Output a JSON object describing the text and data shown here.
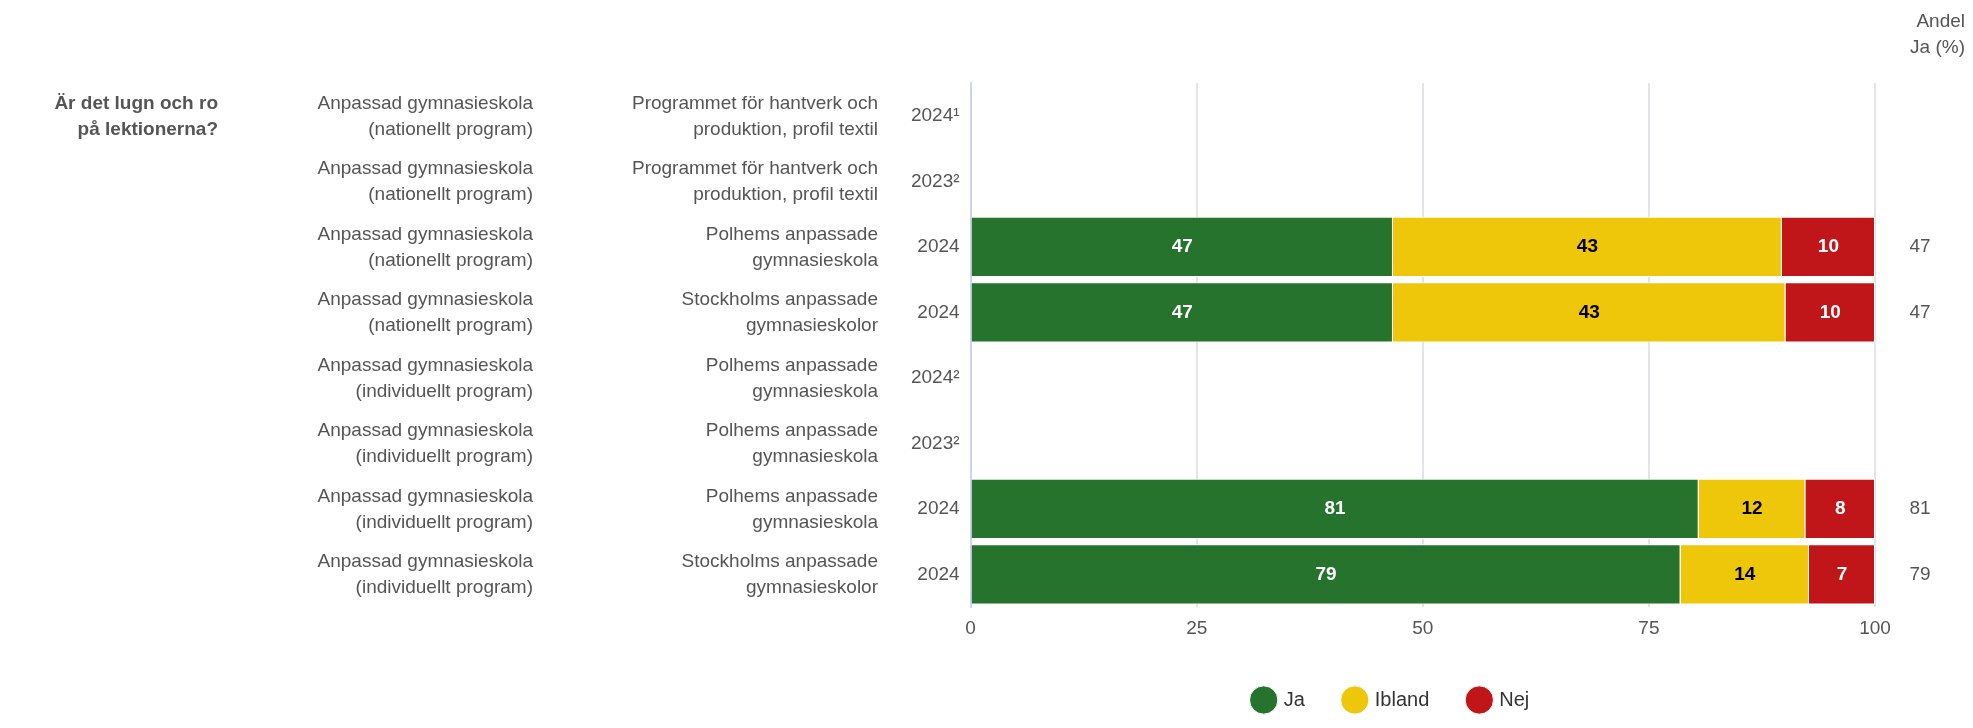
{
  "chart_data": {
    "type": "bar",
    "orientation": "horizontal",
    "stacked": true,
    "categories": [
      "2024¹",
      "2023²",
      "2024",
      "2024",
      "2024²",
      "2023²",
      "2024",
      "2024"
    ],
    "series": [
      {
        "name": "Ja",
        "color": "#25732c",
        "values": [
          null,
          null,
          46.7,
          46.7,
          null,
          null,
          80.5,
          78.5
        ],
        "value_labels": [
          null,
          null,
          "47",
          "47",
          null,
          null,
          "81",
          "79"
        ]
      },
      {
        "name": "Ibland",
        "color": "#eec70b",
        "values": [
          null,
          null,
          43,
          43.4,
          null,
          null,
          11.8,
          14.2
        ],
        "value_labels": [
          null,
          null,
          "43",
          "43",
          null,
          null,
          "12",
          "14"
        ]
      },
      {
        "name": "Nej",
        "color": "#c0161a",
        "values": [
          null,
          null,
          10.3,
          9.9,
          null,
          null,
          7.7,
          7.3
        ],
        "value_labels": [
          null,
          null,
          "10",
          "10",
          null,
          null,
          "8",
          "7"
        ]
      }
    ],
    "xlim": [
      0,
      100
    ],
    "xticks": [
      0,
      25,
      50,
      75,
      100
    ],
    "grid": "x",
    "legend": "bottom",
    "y2label": "Andel Ja (%)",
    "annotations": [
      "Är det lugn och ro på lektionerna?",
      "Anpassad gymnasieskola (nationellt program)",
      "Programmet för hantverk och produktion, profil textil",
      "Anpassad gymnasieskola (nationellt program)",
      "Programmet för hantverk och produktion, profil textil",
      "Anpassad gymnasieskola (nationellt program)",
      "Polhems anpassade gymnasieskola",
      "Anpassad gymnasieskola (nationellt program)",
      "Stockholms anpassade gymnasieskolor",
      "Anpassad gymnasieskola (individuellt program)",
      "Polhems anpassade gymnasieskola",
      "Anpassad gymnasieskola (individuellt program)",
      "Polhems anpassade gymnasieskola",
      "Anpassad gymnasieskola (individuellt program)",
      "Polhems anpassade gymnasieskola",
      "Anpassad gymnasieskola (individuellt program)",
      "Stockholms anpassade gymnasieskolor"
    ]
  }
}
